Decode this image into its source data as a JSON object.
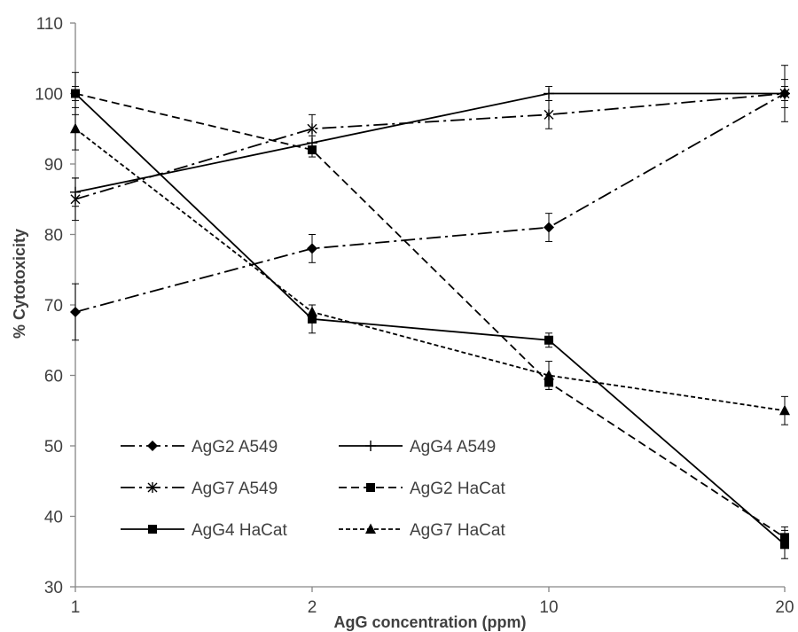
{
  "chart_data": {
    "type": "line",
    "title": "",
    "xlabel": "AgG concentration (ppm)",
    "ylabel": "% Cytotoxicity",
    "x_categories": [
      "1",
      "2",
      "10",
      "20"
    ],
    "x_axis_type": "category",
    "ylim": [
      30,
      110
    ],
    "y_ticks": [
      30,
      40,
      50,
      60,
      70,
      80,
      90,
      100,
      110
    ],
    "grid": false,
    "legend_position": "inside bottom-left, two columns",
    "series": [
      {
        "name": "AgG2 A549",
        "values": [
          69,
          78,
          81,
          100
        ],
        "errors": [
          4,
          2,
          2,
          2
        ],
        "marker": "diamond",
        "line_style": "dash-dot"
      },
      {
        "name": "AgG4 A549",
        "values": [
          86,
          93,
          100,
          100
        ],
        "errors": [
          2,
          1,
          1,
          1
        ],
        "marker": "plus",
        "line_style": "solid"
      },
      {
        "name": "AgG7 A549",
        "values": [
          85,
          95,
          97,
          100
        ],
        "errors": [
          3,
          2,
          2,
          4
        ],
        "marker": "asterisk",
        "line_style": "dash-dot"
      },
      {
        "name": "AgG2 HaCat",
        "values": [
          100,
          92,
          59,
          37
        ],
        "errors": [
          3,
          1,
          1,
          1.5
        ],
        "marker": "square",
        "line_style": "dashed"
      },
      {
        "name": "AgG4 HaCat",
        "values": [
          100,
          68,
          65,
          36
        ],
        "errors": [
          1,
          2,
          1,
          2
        ],
        "marker": "square",
        "line_style": "solid"
      },
      {
        "name": "AgG7 HaCat",
        "values": [
          95,
          69,
          60,
          55
        ],
        "errors": [
          3,
          1,
          2,
          2
        ],
        "marker": "triangle",
        "line_style": "short-dash"
      }
    ],
    "colors": {
      "line": "#000000",
      "axis": "#868686",
      "text": "#404040"
    }
  }
}
